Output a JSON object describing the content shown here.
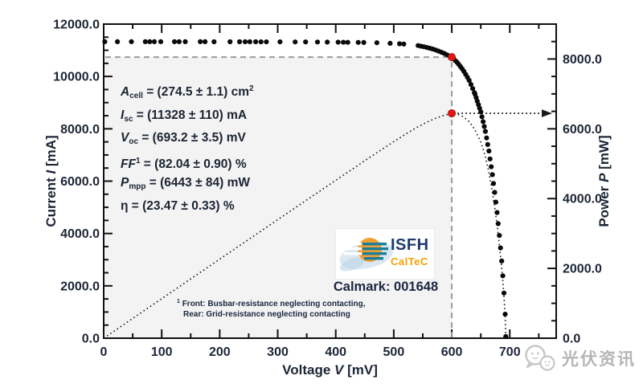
{
  "watermark": {
    "text": "光伏资讯",
    "icon": "wechat-icon"
  },
  "calibration": {
    "calmark_label": "Calmark: 001648",
    "logo": {
      "org": "ISFH",
      "division": "CalTeC"
    },
    "footnote_sup": "1",
    "footnote_line1": "Front: Busbar-resistance neglecting contacting,",
    "footnote_line2": "Rear: Grid-resistance neglecting contacting"
  },
  "chart_data": {
    "type": "line",
    "title": "",
    "x_axis": {
      "label_prefix": "Voltage ",
      "label_var": "V",
      "label_suffix": " [mV]",
      "min": 0,
      "max": 780,
      "minor_step": 50,
      "tick_values": [
        0,
        100,
        200,
        300,
        400,
        500,
        600,
        700
      ],
      "tick_labels": [
        "0",
        "100",
        "200",
        "300",
        "400",
        "500",
        "600",
        "700"
      ]
    },
    "y_left_axis": {
      "label_prefix": "Current ",
      "label_var": "I",
      "label_suffix": " [mA]",
      "min": 0,
      "max": 12000,
      "minor_step": 500,
      "tick_values": [
        0,
        2000,
        4000,
        6000,
        8000,
        10000,
        12000
      ],
      "tick_labels": [
        "0.0",
        "2000.0",
        "4000.0",
        "6000.0",
        "8000.0",
        "10000.0",
        "12000.0"
      ]
    },
    "y_right_axis": {
      "label_prefix": "Power ",
      "label_var": "P",
      "label_suffix": " [mW]",
      "min": 0,
      "max": 9000,
      "minor_step": 500,
      "tick_values": [
        0,
        2000,
        4000,
        6000,
        8000
      ],
      "tick_labels": [
        "0.0",
        "2000.0",
        "4000.0",
        "6000.0",
        "8000.0"
      ]
    },
    "annotation_lines": [
      {
        "var": "A",
        "sub": "cell",
        "sup": "",
        "text": " = (274.5 ± 1.1) cm",
        "text_sup": "2",
        "upright": false
      },
      {
        "var": "I",
        "sub": "sc",
        "sup": "",
        "text": " = (11328 ± 110) mA",
        "text_sup": "",
        "upright": false
      },
      {
        "var": "V",
        "sub": "oc",
        "sup": "",
        "text": " = (693.2 ± 3.5) mV",
        "text_sup": "",
        "upright": false
      },
      {
        "var": "FF",
        "sub": "",
        "sup": "1",
        "text": " = (82.04 ± 0.90) %",
        "text_sup": "",
        "upright": false
      },
      {
        "var": "P",
        "sub": "mpp",
        "sup": "",
        "text": " = (6443 ± 84) mW",
        "text_sup": "",
        "upright": false
      },
      {
        "var": "η",
        "sub": "",
        "sup": "",
        "text": " = (23.47 ± 0.33) %",
        "text_sup": "",
        "upright": true
      }
    ],
    "key_values": {
      "isc_mA": 11328,
      "voc_mV": 693.2,
      "ff_percent": 82.04,
      "pmpp_mW": 6443,
      "eta_percent": 23.47,
      "acell_cm2": 274.5
    },
    "mpp": {
      "v_mV": 600,
      "i_mA": 10738,
      "p_mW": 6443
    },
    "iv_curve_points": [
      [
        0,
        11328
      ],
      [
        50,
        11328
      ],
      [
        100,
        11327
      ],
      [
        150,
        11327
      ],
      [
        200,
        11326
      ],
      [
        250,
        11324
      ],
      [
        300,
        11322
      ],
      [
        350,
        11317
      ],
      [
        400,
        11310
      ],
      [
        450,
        11296
      ],
      [
        475,
        11285
      ],
      [
        500,
        11262
      ],
      [
        520,
        11235
      ],
      [
        540,
        11190
      ],
      [
        555,
        11120
      ],
      [
        570,
        11030
      ],
      [
        585,
        10900
      ],
      [
        600,
        10740
      ],
      [
        610,
        10520
      ],
      [
        620,
        10230
      ],
      [
        630,
        9850
      ],
      [
        640,
        9330
      ],
      [
        650,
        8650
      ],
      [
        658,
        7900
      ],
      [
        664,
        7150
      ],
      [
        670,
        6250
      ],
      [
        675,
        5400
      ],
      [
        679,
        4600
      ],
      [
        683,
        3700
      ],
      [
        686,
        2950
      ],
      [
        689,
        2100
      ],
      [
        691,
        1350
      ],
      [
        692.5,
        700
      ],
      [
        693.2,
        0
      ]
    ],
    "power_curve_rule": "P(V) = V * I(V) / 1000, from 0 to Voc, peak at MPP",
    "legend": "none",
    "grid": "off",
    "style": {
      "marker_color": "#0a0a0a",
      "mpp_marker_color": "#e8150f",
      "dashed_guide_color": "#9b9b9b",
      "shade_color": "#f3f3f3",
      "axis_color": "#111111",
      "text_color": "#1c2536"
    }
  }
}
